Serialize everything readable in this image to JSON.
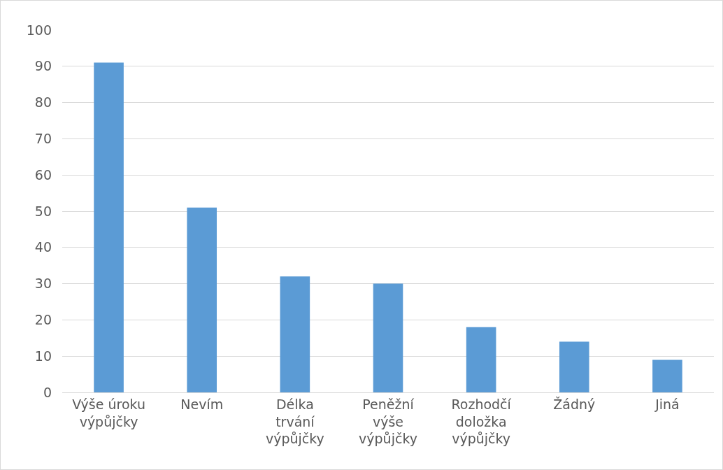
{
  "chart_data": {
    "type": "bar",
    "categories": [
      "Výše úroku výpůjčky",
      "Nevím",
      "Délka trvání výpůjčky",
      "Peněžní výše výpůjčky",
      "Rozhodčí doložka výpůjčky",
      "Žádný",
      "Jiná"
    ],
    "values": [
      91,
      51,
      32,
      30,
      18,
      14,
      9
    ],
    "color": "#5b9bd5",
    "ylim": [
      0,
      100
    ],
    "yticks": [
      0,
      10,
      20,
      30,
      40,
      50,
      60,
      70,
      80,
      90,
      100
    ],
    "grid": "y",
    "legend": false
  }
}
